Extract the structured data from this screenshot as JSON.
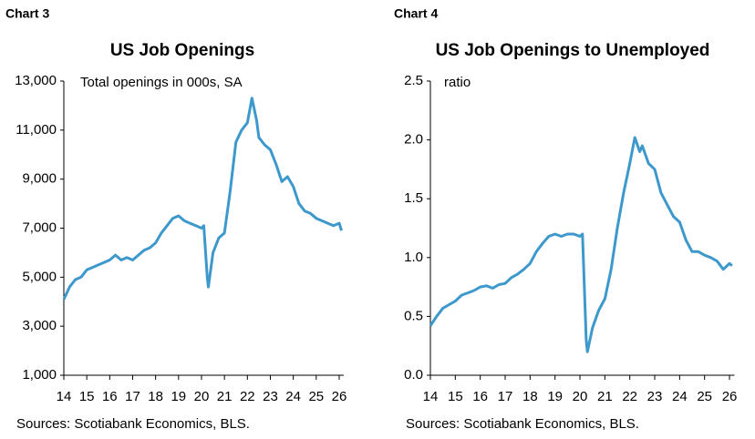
{
  "chart_data": [
    {
      "type": "line",
      "label": "Chart 3",
      "title": "US Job Openings",
      "subtitle": "Total openings in 000s, SA",
      "source": "Sources: Scotiabank Economics, BLS.",
      "color": "#3d98cc",
      "x": [
        14.0,
        14.25,
        14.5,
        14.75,
        15.0,
        15.25,
        15.5,
        15.75,
        16.0,
        16.25,
        16.5,
        16.75,
        17.0,
        17.25,
        17.5,
        17.75,
        18.0,
        18.25,
        18.5,
        18.75,
        19.0,
        19.25,
        19.5,
        19.75,
        20.0,
        20.1,
        20.25,
        20.3,
        20.5,
        20.75,
        21.0,
        21.25,
        21.5,
        21.75,
        22.0,
        22.2,
        22.4,
        22.5,
        22.75,
        23.0,
        23.25,
        23.5,
        23.75,
        24.0,
        24.25,
        24.5,
        24.75,
        25.0,
        25.25,
        25.5,
        25.75,
        26.0,
        26.1
      ],
      "values": [
        4100,
        4600,
        4900,
        5000,
        5300,
        5400,
        5500,
        5600,
        5700,
        5900,
        5700,
        5800,
        5700,
        5900,
        6100,
        6200,
        6400,
        6800,
        7100,
        7400,
        7500,
        7300,
        7200,
        7100,
        7000,
        7100,
        5000,
        4600,
        6000,
        6600,
        6800,
        8500,
        10500,
        11000,
        11300,
        12300,
        11400,
        10700,
        10400,
        10200,
        9600,
        8900,
        9100,
        8700,
        8000,
        7700,
        7600,
        7400,
        7300,
        7200,
        7100,
        7200,
        6900
      ],
      "xlim": [
        14,
        26.2
      ],
      "xticks": [
        14,
        15,
        16,
        17,
        18,
        19,
        20,
        21,
        22,
        23,
        24,
        25,
        26
      ],
      "ylim": [
        1000,
        13000
      ],
      "yticks": [
        {
          "value": 1000,
          "label": "1,000"
        },
        {
          "value": 3000,
          "label": "3,000"
        },
        {
          "value": 5000,
          "label": "5,000"
        },
        {
          "value": 7000,
          "label": "7,000"
        },
        {
          "value": 9000,
          "label": "9,000"
        },
        {
          "value": 11000,
          "label": "11,000"
        },
        {
          "value": 13000,
          "label": "13,000"
        }
      ]
    },
    {
      "type": "line",
      "label": "Chart 4",
      "title": "US Job Openings to Unemployed",
      "subtitle": "ratio",
      "source": "Sources: Scotiabank Economics, BLS.",
      "color": "#3d98cc",
      "x": [
        14.0,
        14.25,
        14.5,
        14.75,
        15.0,
        15.25,
        15.5,
        15.75,
        16.0,
        16.25,
        16.5,
        16.75,
        17.0,
        17.25,
        17.5,
        17.75,
        18.0,
        18.25,
        18.5,
        18.75,
        19.0,
        19.25,
        19.5,
        19.75,
        20.0,
        20.1,
        20.25,
        20.3,
        20.5,
        20.75,
        21.0,
        21.25,
        21.5,
        21.75,
        22.0,
        22.2,
        22.4,
        22.5,
        22.75,
        23.0,
        23.25,
        23.5,
        23.75,
        24.0,
        24.25,
        24.5,
        24.75,
        25.0,
        25.25,
        25.5,
        25.75,
        26.0,
        26.1
      ],
      "values": [
        0.42,
        0.5,
        0.57,
        0.6,
        0.63,
        0.68,
        0.7,
        0.72,
        0.75,
        0.76,
        0.74,
        0.77,
        0.78,
        0.83,
        0.86,
        0.9,
        0.95,
        1.05,
        1.12,
        1.18,
        1.2,
        1.18,
        1.2,
        1.2,
        1.18,
        1.2,
        0.3,
        0.2,
        0.4,
        0.55,
        0.65,
        0.9,
        1.25,
        1.55,
        1.8,
        2.02,
        1.9,
        1.95,
        1.8,
        1.75,
        1.55,
        1.45,
        1.35,
        1.3,
        1.15,
        1.05,
        1.05,
        1.02,
        1.0,
        0.97,
        0.9,
        0.95,
        0.93
      ],
      "xlim": [
        14,
        26.2
      ],
      "xticks": [
        14,
        15,
        16,
        17,
        18,
        19,
        20,
        21,
        22,
        23,
        24,
        25,
        26
      ],
      "ylim": [
        0,
        2.5
      ],
      "yticks": [
        {
          "value": 0,
          "label": "0.0"
        },
        0.5,
        {
          "value": 1,
          "label": "1.0"
        },
        1.5,
        {
          "value": 2,
          "label": "2.0"
        },
        2.5
      ]
    }
  ]
}
